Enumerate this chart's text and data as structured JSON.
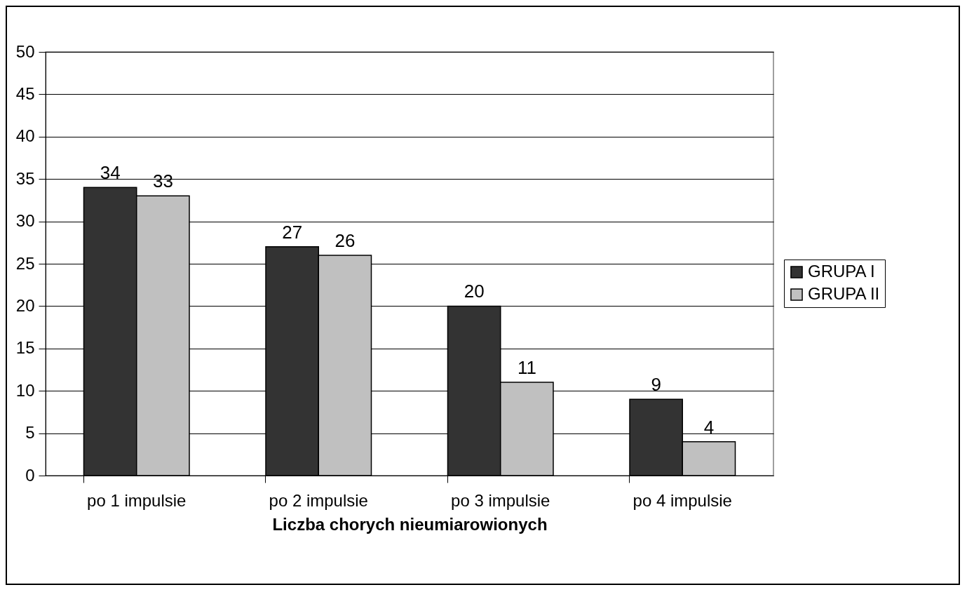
{
  "chart_data": {
    "type": "bar",
    "xlabel": "Liczba chorych nieumiarowionych",
    "categories": [
      "po 1 impulsie",
      "po 2 impulsie",
      "po 3 impulsie",
      "po 4 impulsie"
    ],
    "series": [
      {
        "name": "GRUPA I",
        "color": "#333333",
        "values": [
          34,
          27,
          20,
          9
        ]
      },
      {
        "name": "GRUPA II",
        "color": "#c0c0c0",
        "values": [
          33,
          26,
          11,
          4
        ]
      }
    ],
    "ylim": [
      0,
      50
    ],
    "yticks": [
      0,
      5,
      10,
      15,
      20,
      25,
      30,
      35,
      40,
      45,
      50
    ],
    "grid": "y",
    "legend": "right",
    "data_labels": true
  }
}
